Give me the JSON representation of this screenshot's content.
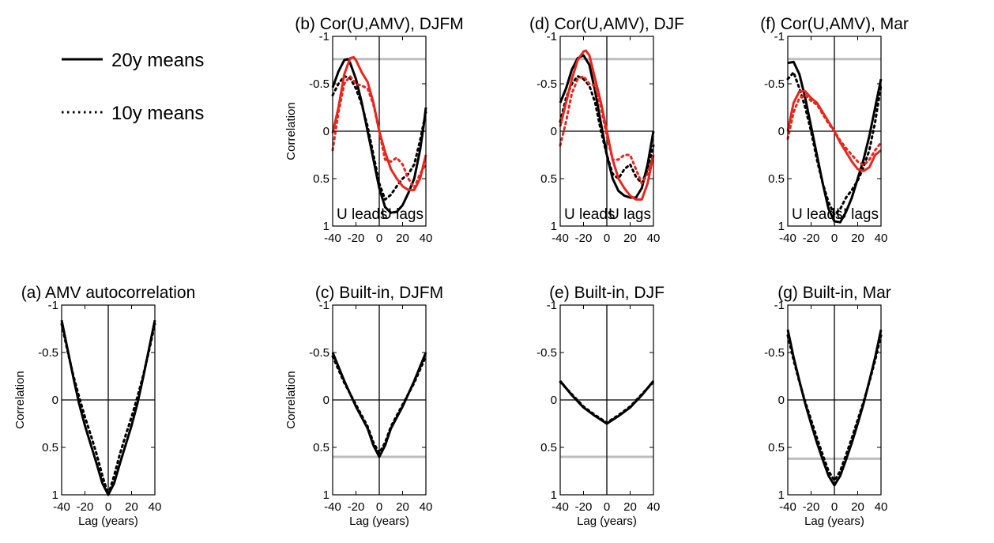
{
  "colors": {
    "black": "#000000",
    "red": "#e8261c",
    "significance": "#bdbdbd"
  },
  "legend": [
    {
      "label": "20y means",
      "style": "solid"
    },
    {
      "label": "10y means",
      "style": "dotted"
    }
  ],
  "chart_data": [
    {
      "id": "a",
      "type": "line",
      "title": "(a) AMV autocorrelation",
      "xlabel": "Lag (years)",
      "ylabel": "Correlation",
      "xlim": [
        -40,
        40
      ],
      "ylim": [
        -1,
        1
      ],
      "y_inverted": true,
      "xticks": [
        "-40",
        "-20",
        "0",
        "20",
        "40"
      ],
      "yticks": [
        "-1",
        "-0.5",
        "0",
        "0.5",
        "1"
      ],
      "significance_level": null,
      "annotations": [],
      "series": [
        {
          "color": "black",
          "style": "solid",
          "x": [
            -40,
            -35,
            -30,
            -25,
            -20,
            -15,
            -10,
            -5,
            0,
            5,
            10,
            15,
            20,
            25,
            30,
            35,
            40
          ],
          "y": [
            -0.84,
            -0.54,
            -0.24,
            0.04,
            0.27,
            0.47,
            0.67,
            0.88,
            1.0,
            0.88,
            0.67,
            0.47,
            0.27,
            0.04,
            -0.24,
            -0.54,
            -0.84
          ]
        },
        {
          "color": "black",
          "style": "dotted",
          "x": [
            -40,
            -35,
            -30,
            -25,
            -20,
            -15,
            -10,
            -5,
            0,
            5,
            10,
            15,
            20,
            25,
            30,
            35,
            40
          ],
          "y": [
            -0.8,
            -0.52,
            -0.26,
            -0.03,
            0.18,
            0.37,
            0.57,
            0.8,
            1.0,
            0.8,
            0.57,
            0.37,
            0.18,
            -0.03,
            -0.26,
            -0.52,
            -0.8
          ]
        }
      ]
    },
    {
      "id": "b",
      "type": "line",
      "title": "(b) Cor(U,AMV), DJFM",
      "xlabel": "",
      "ylabel": "Correlation",
      "xlim": [
        -40,
        40
      ],
      "ylim": [
        -1,
        1
      ],
      "y_inverted": true,
      "xticks": [
        "-40",
        "-20",
        "0",
        "20",
        "40"
      ],
      "yticks": [
        "-1",
        "-0.5",
        "0",
        "0.5",
        "1"
      ],
      "significance_level": -0.76,
      "annotations": [
        {
          "text": "U leads",
          "position": "bottom-left"
        },
        {
          "text": "U lags",
          "position": "bottom-right"
        }
      ],
      "series": [
        {
          "color": "black",
          "style": "solid",
          "x": [
            -40,
            -35,
            -30,
            -27,
            -25,
            -20,
            -15,
            -10,
            -5,
            0,
            5,
            10,
            15,
            20,
            25,
            30,
            35,
            38,
            40
          ],
          "y": [
            -0.46,
            -0.63,
            -0.75,
            -0.76,
            -0.72,
            -0.55,
            -0.3,
            0.0,
            0.3,
            0.6,
            0.8,
            0.86,
            0.85,
            0.78,
            0.65,
            0.5,
            0.2,
            -0.05,
            -0.25
          ]
        },
        {
          "color": "black",
          "style": "dotted",
          "x": [
            -40,
            -35,
            -30,
            -25,
            -20,
            -15,
            -10,
            -5,
            0,
            5,
            10,
            15,
            20,
            25,
            30,
            35,
            40
          ],
          "y": [
            -0.38,
            -0.5,
            -0.58,
            -0.56,
            -0.45,
            -0.28,
            -0.05,
            0.25,
            0.55,
            0.72,
            0.67,
            0.58,
            0.5,
            0.45,
            0.35,
            0.1,
            -0.2
          ]
        },
        {
          "color": "red",
          "style": "solid",
          "x": [
            -40,
            -35,
            -30,
            -25,
            -22,
            -20,
            -15,
            -10,
            -5,
            0,
            5,
            10,
            15,
            20,
            25,
            30,
            35,
            40
          ],
          "y": [
            0.02,
            -0.25,
            -0.6,
            -0.77,
            -0.78,
            -0.75,
            -0.62,
            -0.52,
            -0.3,
            0.0,
            0.22,
            0.4,
            0.5,
            0.58,
            0.62,
            0.62,
            0.5,
            0.25
          ]
        },
        {
          "color": "red",
          "style": "dotted",
          "x": [
            -40,
            -35,
            -30,
            -25,
            -20,
            -15,
            -10,
            -5,
            0,
            5,
            10,
            15,
            20,
            25,
            30,
            35,
            40
          ],
          "y": [
            0.2,
            -0.2,
            -0.5,
            -0.58,
            -0.5,
            -0.48,
            -0.45,
            -0.28,
            0.0,
            0.3,
            0.32,
            0.28,
            0.35,
            0.5,
            0.6,
            0.45,
            0.35
          ]
        }
      ]
    },
    {
      "id": "c",
      "type": "line",
      "title": "(c) Built-in, DJFM",
      "xlabel": "Lag (years)",
      "ylabel": "Correlation",
      "xlim": [
        -40,
        40
      ],
      "ylim": [
        -1,
        1
      ],
      "y_inverted": true,
      "xticks": [
        "-40",
        "-20",
        "0",
        "20",
        "40"
      ],
      "yticks": [
        "-1",
        "-0.5",
        "0",
        "0.5",
        "1"
      ],
      "significance_level": 0.6,
      "annotations": [],
      "series": [
        {
          "color": "black",
          "style": "solid",
          "x": [
            -40,
            -30,
            -20,
            -10,
            -5,
            0,
            5,
            10,
            20,
            30,
            40
          ],
          "y": [
            -0.5,
            -0.2,
            0.07,
            0.3,
            0.48,
            0.6,
            0.48,
            0.3,
            0.07,
            -0.2,
            -0.5
          ]
        },
        {
          "color": "black",
          "style": "dotted",
          "x": [
            -40,
            -30,
            -20,
            -10,
            -5,
            0,
            5,
            10,
            20,
            30,
            40
          ],
          "y": [
            -0.46,
            -0.18,
            0.05,
            0.28,
            0.45,
            0.56,
            0.45,
            0.28,
            0.05,
            -0.18,
            -0.46
          ]
        }
      ]
    },
    {
      "id": "d",
      "type": "line",
      "title": "(d) Cor(U,AMV), DJF",
      "xlabel": "",
      "ylabel": "",
      "xlim": [
        -40,
        40
      ],
      "ylim": [
        -1,
        1
      ],
      "y_inverted": true,
      "xticks": [
        "-40",
        "-20",
        "0",
        "20",
        "40"
      ],
      "yticks": [
        "-1",
        "-0.5",
        "0",
        "0.5",
        "1"
      ],
      "significance_level": -0.76,
      "annotations": [
        {
          "text": "U leads",
          "position": "bottom-left"
        },
        {
          "text": "U lags",
          "position": "bottom-right"
        }
      ],
      "series": [
        {
          "color": "black",
          "style": "solid",
          "x": [
            -40,
            -35,
            -30,
            -25,
            -20,
            -15,
            -10,
            -5,
            0,
            5,
            10,
            15,
            20,
            25,
            30,
            35,
            40
          ],
          "y": [
            -0.3,
            -0.45,
            -0.65,
            -0.77,
            -0.8,
            -0.7,
            -0.42,
            -0.08,
            0.25,
            0.5,
            0.63,
            0.68,
            0.7,
            0.7,
            0.6,
            0.35,
            0.0
          ]
        },
        {
          "color": "black",
          "style": "dotted",
          "x": [
            -40,
            -35,
            -30,
            -25,
            -20,
            -15,
            -10,
            -5,
            0,
            5,
            10,
            15,
            20,
            25,
            30,
            35,
            40
          ],
          "y": [
            -0.1,
            -0.35,
            -0.5,
            -0.58,
            -0.55,
            -0.48,
            -0.3,
            0.0,
            0.25,
            0.45,
            0.5,
            0.4,
            0.35,
            0.48,
            0.55,
            0.4,
            0.15
          ]
        },
        {
          "color": "red",
          "style": "solid",
          "x": [
            -40,
            -35,
            -30,
            -25,
            -20,
            -18,
            -15,
            -10,
            -5,
            0,
            5,
            10,
            15,
            20,
            25,
            30,
            35,
            40
          ],
          "y": [
            -0.05,
            -0.3,
            -0.55,
            -0.75,
            -0.84,
            -0.85,
            -0.8,
            -0.55,
            -0.3,
            0.0,
            0.3,
            0.5,
            0.6,
            0.68,
            0.72,
            0.72,
            0.55,
            0.25
          ]
        },
        {
          "color": "red",
          "style": "dotted",
          "x": [
            -40,
            -35,
            -30,
            -25,
            -20,
            -15,
            -10,
            -5,
            0,
            5,
            10,
            15,
            20,
            25,
            30,
            35,
            40
          ],
          "y": [
            0.15,
            -0.1,
            -0.4,
            -0.55,
            -0.58,
            -0.5,
            -0.48,
            -0.25,
            0.05,
            0.3,
            0.3,
            0.25,
            0.25,
            0.4,
            0.55,
            0.45,
            0.25
          ]
        }
      ]
    },
    {
      "id": "e",
      "type": "line",
      "title": "(e) Built-in, DJF",
      "xlabel": "Lag (years)",
      "ylabel": "",
      "xlim": [
        -40,
        40
      ],
      "ylim": [
        -1,
        1
      ],
      "y_inverted": true,
      "xticks": [
        "-40",
        "-20",
        "0",
        "20",
        "40"
      ],
      "yticks": [
        "-1",
        "-0.5",
        "0",
        "0.5",
        "1"
      ],
      "significance_level": 0.6,
      "annotations": [],
      "series": [
        {
          "color": "black",
          "style": "solid",
          "x": [
            -40,
            -30,
            -20,
            -10,
            0,
            10,
            20,
            30,
            40
          ],
          "y": [
            -0.2,
            -0.05,
            0.08,
            0.17,
            0.25,
            0.17,
            0.08,
            -0.05,
            -0.2
          ]
        },
        {
          "color": "black",
          "style": "dotted",
          "x": [
            -40,
            -30,
            -20,
            -10,
            0,
            10,
            20,
            30,
            40
          ],
          "y": [
            -0.19,
            -0.06,
            0.07,
            0.16,
            0.24,
            0.16,
            0.07,
            -0.06,
            -0.19
          ]
        }
      ]
    },
    {
      "id": "f",
      "type": "line",
      "title": "(f) Cor(U,AMV), Mar",
      "xlabel": "",
      "ylabel": "",
      "xlim": [
        -40,
        40
      ],
      "ylim": [
        -1,
        1
      ],
      "y_inverted": true,
      "xticks": [
        "-40",
        "-20",
        "0",
        "20",
        "40"
      ],
      "yticks": [
        "-1",
        "-0.5",
        "0",
        "0.5",
        "1"
      ],
      "significance_level": -0.76,
      "annotations": [
        {
          "text": "U leads",
          "position": "bottom-left"
        },
        {
          "text": "U lags",
          "position": "bottom-right"
        }
      ],
      "series": [
        {
          "color": "black",
          "style": "solid",
          "x": [
            -40,
            -35,
            -30,
            -25,
            -20,
            -15,
            -10,
            -5,
            0,
            5,
            10,
            15,
            20,
            25,
            30,
            35,
            40
          ],
          "y": [
            -0.72,
            -0.73,
            -0.6,
            -0.35,
            -0.05,
            0.25,
            0.55,
            0.82,
            0.95,
            0.96,
            0.85,
            0.7,
            0.5,
            0.3,
            0.05,
            -0.25,
            -0.55
          ]
        },
        {
          "color": "black",
          "style": "dotted",
          "x": [
            -40,
            -35,
            -30,
            -25,
            -20,
            -15,
            -10,
            -5,
            0,
            5,
            10,
            15,
            20,
            25,
            30,
            35,
            40
          ],
          "y": [
            -0.55,
            -0.62,
            -0.45,
            -0.25,
            0.0,
            0.3,
            0.55,
            0.75,
            0.88,
            0.82,
            0.7,
            0.62,
            0.52,
            0.38,
            0.2,
            -0.1,
            -0.48
          ]
        },
        {
          "color": "red",
          "style": "solid",
          "x": [
            -40,
            -35,
            -30,
            -25,
            -20,
            -15,
            -10,
            -5,
            0,
            5,
            10,
            15,
            20,
            25,
            30,
            35,
            40
          ],
          "y": [
            0.0,
            -0.3,
            -0.42,
            -0.42,
            -0.35,
            -0.3,
            -0.2,
            -0.1,
            0.0,
            0.12,
            0.22,
            0.32,
            0.4,
            0.42,
            0.38,
            0.25,
            0.2
          ]
        },
        {
          "color": "red",
          "style": "dotted",
          "x": [
            -40,
            -35,
            -30,
            -25,
            -20,
            -15,
            -10,
            -5,
            0,
            5,
            10,
            15,
            20,
            25,
            30,
            35,
            40
          ],
          "y": [
            0.08,
            -0.2,
            -0.35,
            -0.38,
            -0.32,
            -0.28,
            -0.18,
            -0.08,
            0.0,
            0.1,
            0.18,
            0.25,
            0.32,
            0.36,
            0.3,
            0.2,
            0.12
          ]
        }
      ]
    },
    {
      "id": "g",
      "type": "line",
      "title": "(g) Built-in, Mar",
      "xlabel": "Lag (years)",
      "ylabel": "",
      "xlim": [
        -40,
        40
      ],
      "ylim": [
        -1,
        1
      ],
      "y_inverted": true,
      "xticks": [
        "-40",
        "-20",
        "0",
        "20",
        "40"
      ],
      "yticks": [
        "-1",
        "-0.5",
        "0",
        "0.5",
        "1"
      ],
      "significance_level": 0.62,
      "annotations": [],
      "series": [
        {
          "color": "black",
          "style": "solid",
          "x": [
            -40,
            -35,
            -30,
            -25,
            -20,
            -15,
            -10,
            -5,
            0,
            5,
            10,
            15,
            20,
            25,
            30,
            35,
            40
          ],
          "y": [
            -0.74,
            -0.45,
            -0.2,
            0.04,
            0.25,
            0.45,
            0.63,
            0.8,
            0.9,
            0.8,
            0.63,
            0.45,
            0.25,
            0.04,
            -0.2,
            -0.45,
            -0.74
          ]
        },
        {
          "color": "black",
          "style": "dotted",
          "x": [
            -40,
            -35,
            -30,
            -25,
            -20,
            -15,
            -10,
            -5,
            0,
            5,
            10,
            15,
            20,
            25,
            30,
            35,
            40
          ],
          "y": [
            -0.68,
            -0.42,
            -0.19,
            0.02,
            0.21,
            0.4,
            0.58,
            0.75,
            0.85,
            0.75,
            0.58,
            0.4,
            0.21,
            0.02,
            -0.19,
            -0.42,
            -0.68
          ]
        }
      ]
    }
  ]
}
